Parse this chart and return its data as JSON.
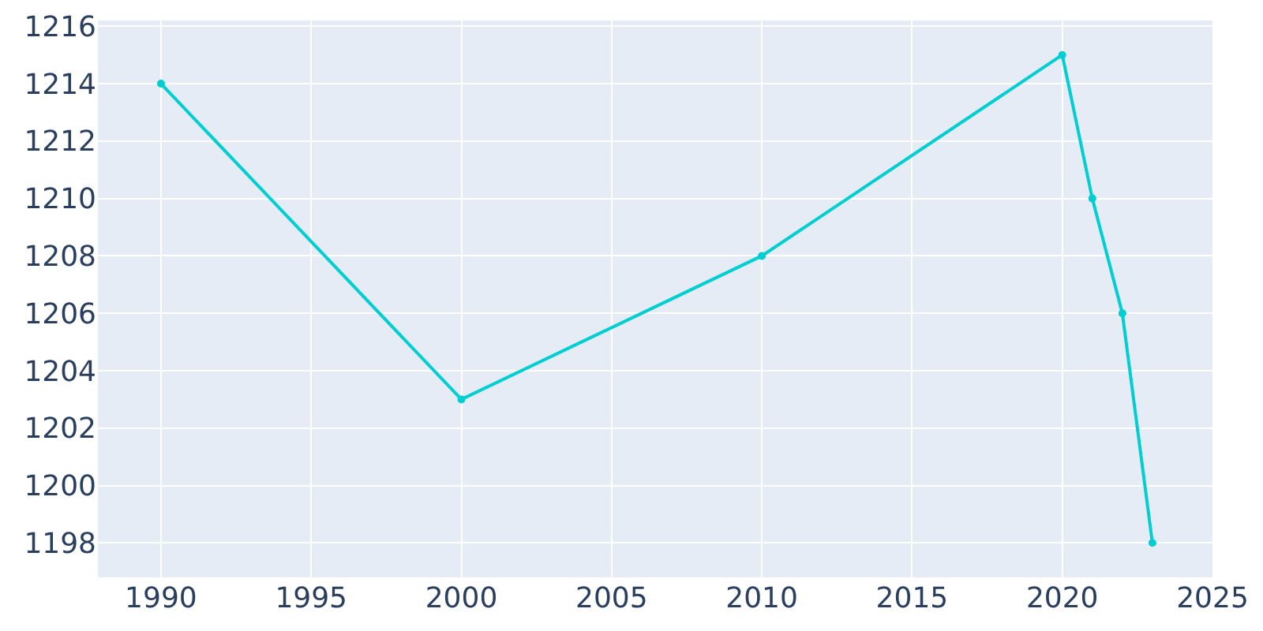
{
  "chart_data": {
    "type": "line",
    "x": [
      1990,
      2000,
      2010,
      2020,
      2021,
      2022,
      2023
    ],
    "series": [
      {
        "color": "#00ced1",
        "values": [
          1214,
          1203,
          1208,
          1215,
          1210,
          1206,
          1198
        ]
      }
    ],
    "xlim": [
      1987.9,
      2025
    ],
    "xticks": [
      1990,
      1995,
      2000,
      2005,
      2010,
      2015,
      2020,
      2025
    ],
    "ylim": [
      1196.8,
      1216.2
    ],
    "yticks": [
      1198,
      1200,
      1202,
      1204,
      1206,
      1208,
      1210,
      1212,
      1214,
      1216
    ],
    "grid": true,
    "marker": "circle",
    "line_style": "solid"
  }
}
